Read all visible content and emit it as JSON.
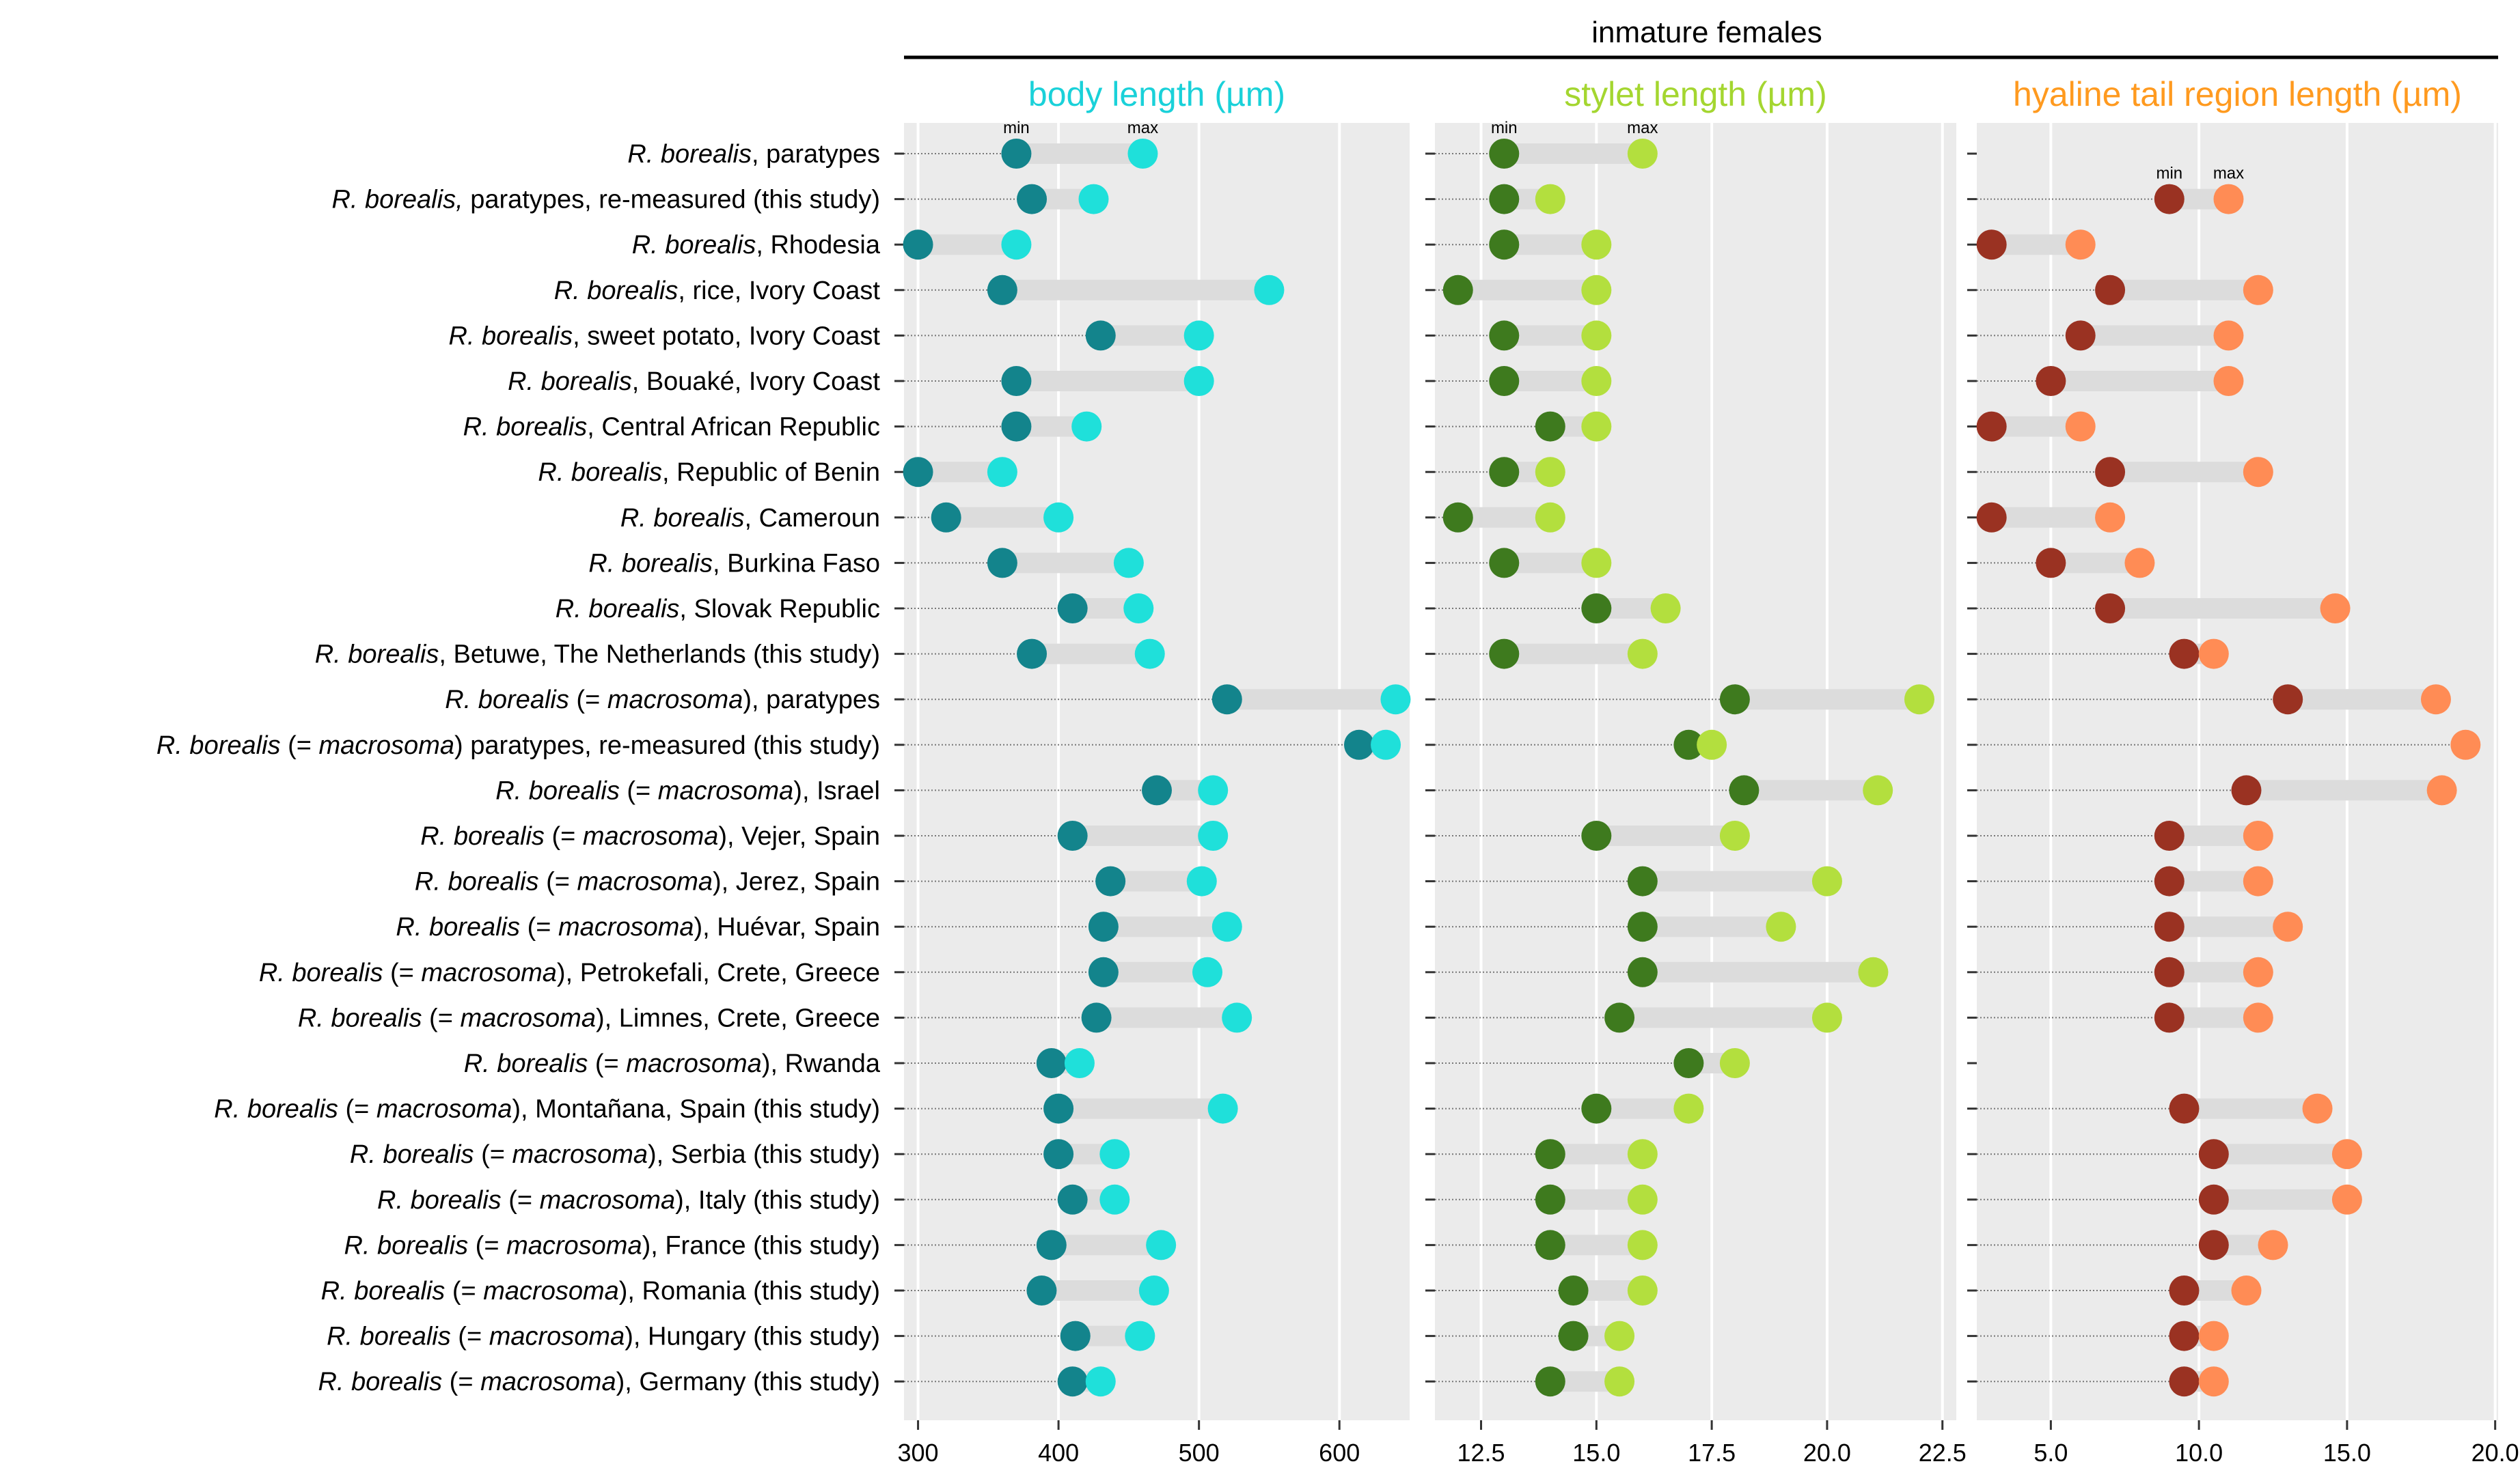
{
  "header": "inmature females",
  "row_labels": [
    {
      "species": "R. borealis",
      "rest": ", paratypes"
    },
    {
      "species": "R. borealis,",
      "rest": " paratypes, re-measured (this study)"
    },
    {
      "species": "R. borealis",
      "rest": ", Rhodesia"
    },
    {
      "species": "R. borealis",
      "rest": ", rice, Ivory Coast"
    },
    {
      "species": "R. borealis",
      "rest": ", sweet potato, Ivory Coast"
    },
    {
      "species": "R. borealis",
      "rest": ", Bouaké, Ivory Coast"
    },
    {
      "species": "R. borealis",
      "rest": ", Central African Republic"
    },
    {
      "species": "R. borealis",
      "rest": ", Republic of Benin"
    },
    {
      "species": "R. borealis",
      "rest": ", Cameroun"
    },
    {
      "species": "R. borealis",
      "rest": ", Burkina Faso"
    },
    {
      "species": "R. borealis",
      "rest": ", Slovak Republic"
    },
    {
      "species": "R. borealis",
      "rest": ", Betuwe, The Netherlands (this study)"
    },
    {
      "species": "R. borealis",
      "pre": " (= ",
      "syn": "macrosoma",
      "rest": "), paratypes"
    },
    {
      "species": "R. borealis",
      "pre": " (= ",
      "syn": "macrosoma",
      "rest": ") paratypes, re-measured (this study)"
    },
    {
      "species": "R. borealis",
      "pre": " (= ",
      "syn": "macrosoma",
      "rest": "), Israel"
    },
    {
      "species": "R. borealis",
      "pre": " (= ",
      "syn": "macrosoma",
      "rest": "), Vejer, Spain"
    },
    {
      "species": "R. borealis",
      "pre": " (= ",
      "syn": "macrosoma",
      "rest": "), Jerez, Spain"
    },
    {
      "species": "R. borealis",
      "pre": " (= ",
      "syn": "macrosoma",
      "rest": "), Huévar, Spain"
    },
    {
      "species": "R. borealis",
      "pre": " (= ",
      "syn": "macrosoma",
      "rest": "), Petrokefali, Crete, Greece"
    },
    {
      "species": "R. borealis",
      "pre": " (= ",
      "syn": "macrosoma",
      "rest": "), Limnes, Crete, Greece"
    },
    {
      "species": "R. borealis",
      "pre": " (= ",
      "syn": "macrosoma",
      "rest": "), Rwanda"
    },
    {
      "species": "R. borealis",
      "pre": " (= ",
      "syn": "macrosoma",
      "rest": "), Montañana, Spain (this study)"
    },
    {
      "species": "R. borealis",
      "pre": " (= ",
      "syn": "macrosoma",
      "rest": "), Serbia (this study)"
    },
    {
      "species": "R. borealis",
      "pre": " (= ",
      "syn": "macrosoma",
      "rest": "), Italy (this study)"
    },
    {
      "species": "R. borealis",
      "pre": " (= ",
      "syn": "macrosoma",
      "rest": "), France (this study)"
    },
    {
      "species": "R. borealis",
      "pre": " (= ",
      "syn": "macrosoma",
      "rest": "), Romania (this study)"
    },
    {
      "species": "R. borealis",
      "pre": " (= ",
      "syn": "macrosoma",
      "rest": "), Hungary (this study)"
    },
    {
      "species": "R. borealis",
      "pre": " (= ",
      "syn": "macrosoma",
      "rest": "), Germany (this study)"
    }
  ],
  "colors": {
    "panel_bg": "#ebebeb",
    "grid": "#ffffff",
    "range_bar": "#dcdcdc"
  },
  "chart_data": [
    {
      "type": "dumbbell",
      "title": "body length (µm)",
      "title_color": "#1ad1d9",
      "min_color": "#13848c",
      "max_color": "#1fe0da",
      "xlim": [
        290,
        650
      ],
      "ticks": [
        300,
        400,
        500,
        600
      ],
      "tick_labels": [
        "300",
        "400",
        "500",
        "600"
      ],
      "legend": {
        "min_label": "min",
        "max_label": "max",
        "row": 0
      },
      "min": [
        370,
        381,
        300,
        360,
        430,
        370,
        370,
        300,
        320,
        360,
        410,
        381,
        520,
        614,
        470,
        410,
        437,
        432,
        432,
        427,
        395,
        400,
        400,
        410,
        395,
        388,
        412,
        410
      ],
      "max": [
        460,
        425,
        370,
        550,
        500,
        500,
        420,
        360,
        400,
        450,
        457,
        465,
        640,
        633,
        510,
        510,
        502,
        520,
        506,
        527,
        415,
        517,
        440,
        440,
        473,
        468,
        458,
        430
      ]
    },
    {
      "type": "dumbbell",
      "title": "stylet length (µm)",
      "title_color": "#a4d630",
      "min_color": "#3e7a1e",
      "max_color": "#b3df3e",
      "xlim": [
        11.5,
        22.8
      ],
      "ticks": [
        12.5,
        15.0,
        17.5,
        20.0,
        22.5
      ],
      "tick_labels": [
        "12.5",
        "15.0",
        "17.5",
        "20.0",
        "22.5"
      ],
      "legend": {
        "min_label": "min",
        "max_label": "max",
        "row": 0
      },
      "min": [
        13,
        13,
        13,
        12,
        13,
        13,
        14,
        13,
        12,
        13,
        15,
        13,
        18,
        17,
        18.2,
        15,
        16,
        16,
        16,
        15.5,
        17,
        15,
        14,
        14,
        14,
        14.5,
        14.5,
        14
      ],
      "max": [
        16,
        14,
        15,
        15,
        15,
        15,
        15,
        14,
        14,
        15,
        16.5,
        16,
        22,
        17.5,
        21.1,
        18,
        20,
        19,
        21,
        20,
        18,
        17,
        16,
        16,
        16,
        16,
        15.5,
        15.5
      ]
    },
    {
      "type": "dumbbell",
      "title": "hyaline tail region length (µm)",
      "title_color": "#ff9a1f",
      "min_color": "#9a3222",
      "max_color": "#ff8c55",
      "xlim": [
        2.5,
        20.1
      ],
      "ticks": [
        5.0,
        10.0,
        15.0,
        20.0
      ],
      "tick_labels": [
        "5.0",
        "10.0",
        "15.0",
        "20.0"
      ],
      "legend": {
        "min_label": "min",
        "max_label": "max",
        "row": 1
      },
      "min": [
        null,
        9,
        3,
        7,
        6,
        5,
        3,
        7,
        3,
        5,
        7,
        9.5,
        13,
        null,
        11.6,
        9,
        9,
        9,
        9,
        9,
        null,
        9.5,
        10.5,
        10.5,
        10.5,
        9.5,
        9.5,
        9.5
      ],
      "max": [
        null,
        11,
        6,
        12,
        11,
        11,
        6,
        12,
        7,
        8,
        14.6,
        10.5,
        18,
        19,
        18.2,
        12,
        12,
        13,
        12,
        12,
        null,
        14,
        15,
        15,
        12.5,
        11.6,
        10.5,
        10.5
      ]
    }
  ]
}
